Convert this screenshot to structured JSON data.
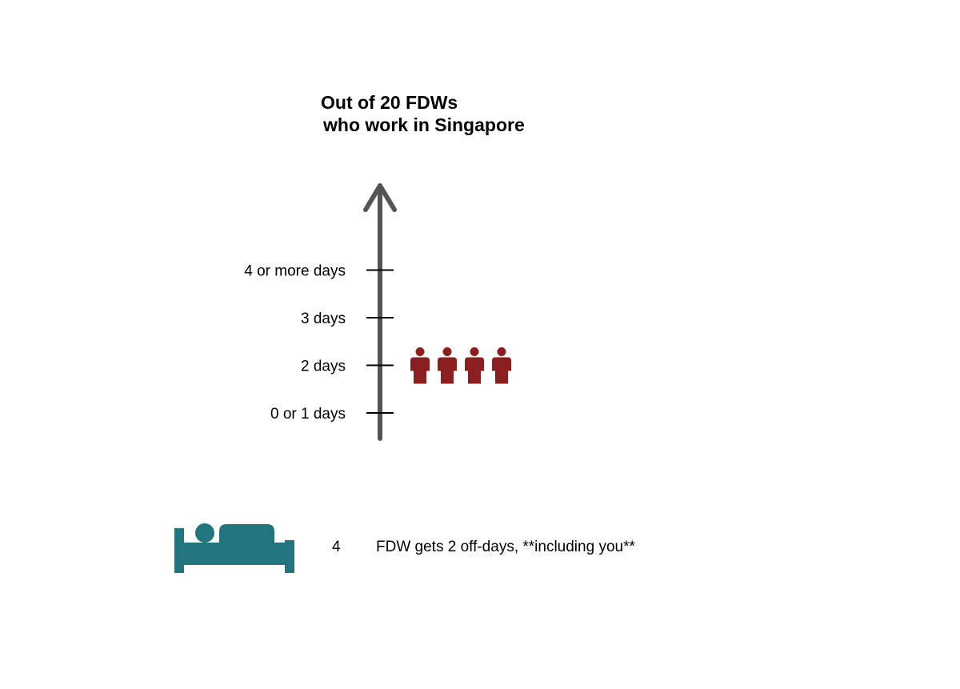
{
  "chart_data": {
    "type": "pictograph",
    "title_lines": [
      "Out of 20 FDWs",
      "who work in Singapore"
    ],
    "categories": [
      "0 or 1 days",
      "3 days",
      "2 days",
      "4 or more days"
    ],
    "category_order_bottom_to_top": [
      "0 or 1 days",
      "2 days",
      "3 days",
      "4 or more days"
    ],
    "values": {
      "0 or 1 days": 0,
      "2 days": 4,
      "3 days": 0,
      "4 or more days": 0
    },
    "total": 20
  },
  "colors": {
    "axis": "#555555",
    "person": "#8b1e1e",
    "bed": "#22747f"
  },
  "icons": {
    "person": "person-icon",
    "bed": "bed-icon"
  },
  "footer": {
    "count": "4",
    "text": "FDW gets 2 off-days, **including you**"
  }
}
